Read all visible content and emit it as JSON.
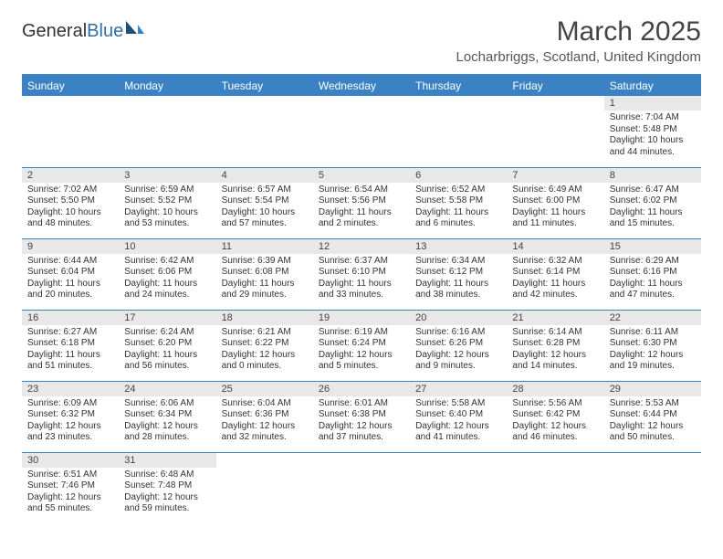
{
  "brand": {
    "part1": "General",
    "part2": "Blue"
  },
  "title": "March 2025",
  "location": "Locharbriggs, Scotland, United Kingdom",
  "colors": {
    "header_bg": "#3b82c4",
    "header_text": "#ffffff",
    "daynum_bg": "#e8e8e8",
    "divider": "#3b82c4",
    "text": "#333333"
  },
  "day_headers": [
    "Sunday",
    "Monday",
    "Tuesday",
    "Wednesday",
    "Thursday",
    "Friday",
    "Saturday"
  ],
  "weeks": [
    [
      {
        "n": "",
        "sr": "",
        "ss": "",
        "dl": "",
        "empty": true
      },
      {
        "n": "",
        "sr": "",
        "ss": "",
        "dl": "",
        "empty": true
      },
      {
        "n": "",
        "sr": "",
        "ss": "",
        "dl": "",
        "empty": true
      },
      {
        "n": "",
        "sr": "",
        "ss": "",
        "dl": "",
        "empty": true
      },
      {
        "n": "",
        "sr": "",
        "ss": "",
        "dl": "",
        "empty": true
      },
      {
        "n": "",
        "sr": "",
        "ss": "",
        "dl": "",
        "empty": true
      },
      {
        "n": "1",
        "sr": "Sunrise: 7:04 AM",
        "ss": "Sunset: 5:48 PM",
        "dl": "Daylight: 10 hours and 44 minutes."
      }
    ],
    [
      {
        "n": "2",
        "sr": "Sunrise: 7:02 AM",
        "ss": "Sunset: 5:50 PM",
        "dl": "Daylight: 10 hours and 48 minutes."
      },
      {
        "n": "3",
        "sr": "Sunrise: 6:59 AM",
        "ss": "Sunset: 5:52 PM",
        "dl": "Daylight: 10 hours and 53 minutes."
      },
      {
        "n": "4",
        "sr": "Sunrise: 6:57 AM",
        "ss": "Sunset: 5:54 PM",
        "dl": "Daylight: 10 hours and 57 minutes."
      },
      {
        "n": "5",
        "sr": "Sunrise: 6:54 AM",
        "ss": "Sunset: 5:56 PM",
        "dl": "Daylight: 11 hours and 2 minutes."
      },
      {
        "n": "6",
        "sr": "Sunrise: 6:52 AM",
        "ss": "Sunset: 5:58 PM",
        "dl": "Daylight: 11 hours and 6 minutes."
      },
      {
        "n": "7",
        "sr": "Sunrise: 6:49 AM",
        "ss": "Sunset: 6:00 PM",
        "dl": "Daylight: 11 hours and 11 minutes."
      },
      {
        "n": "8",
        "sr": "Sunrise: 6:47 AM",
        "ss": "Sunset: 6:02 PM",
        "dl": "Daylight: 11 hours and 15 minutes."
      }
    ],
    [
      {
        "n": "9",
        "sr": "Sunrise: 6:44 AM",
        "ss": "Sunset: 6:04 PM",
        "dl": "Daylight: 11 hours and 20 minutes."
      },
      {
        "n": "10",
        "sr": "Sunrise: 6:42 AM",
        "ss": "Sunset: 6:06 PM",
        "dl": "Daylight: 11 hours and 24 minutes."
      },
      {
        "n": "11",
        "sr": "Sunrise: 6:39 AM",
        "ss": "Sunset: 6:08 PM",
        "dl": "Daylight: 11 hours and 29 minutes."
      },
      {
        "n": "12",
        "sr": "Sunrise: 6:37 AM",
        "ss": "Sunset: 6:10 PM",
        "dl": "Daylight: 11 hours and 33 minutes."
      },
      {
        "n": "13",
        "sr": "Sunrise: 6:34 AM",
        "ss": "Sunset: 6:12 PM",
        "dl": "Daylight: 11 hours and 38 minutes."
      },
      {
        "n": "14",
        "sr": "Sunrise: 6:32 AM",
        "ss": "Sunset: 6:14 PM",
        "dl": "Daylight: 11 hours and 42 minutes."
      },
      {
        "n": "15",
        "sr": "Sunrise: 6:29 AM",
        "ss": "Sunset: 6:16 PM",
        "dl": "Daylight: 11 hours and 47 minutes."
      }
    ],
    [
      {
        "n": "16",
        "sr": "Sunrise: 6:27 AM",
        "ss": "Sunset: 6:18 PM",
        "dl": "Daylight: 11 hours and 51 minutes."
      },
      {
        "n": "17",
        "sr": "Sunrise: 6:24 AM",
        "ss": "Sunset: 6:20 PM",
        "dl": "Daylight: 11 hours and 56 minutes."
      },
      {
        "n": "18",
        "sr": "Sunrise: 6:21 AM",
        "ss": "Sunset: 6:22 PM",
        "dl": "Daylight: 12 hours and 0 minutes."
      },
      {
        "n": "19",
        "sr": "Sunrise: 6:19 AM",
        "ss": "Sunset: 6:24 PM",
        "dl": "Daylight: 12 hours and 5 minutes."
      },
      {
        "n": "20",
        "sr": "Sunrise: 6:16 AM",
        "ss": "Sunset: 6:26 PM",
        "dl": "Daylight: 12 hours and 9 minutes."
      },
      {
        "n": "21",
        "sr": "Sunrise: 6:14 AM",
        "ss": "Sunset: 6:28 PM",
        "dl": "Daylight: 12 hours and 14 minutes."
      },
      {
        "n": "22",
        "sr": "Sunrise: 6:11 AM",
        "ss": "Sunset: 6:30 PM",
        "dl": "Daylight: 12 hours and 19 minutes."
      }
    ],
    [
      {
        "n": "23",
        "sr": "Sunrise: 6:09 AM",
        "ss": "Sunset: 6:32 PM",
        "dl": "Daylight: 12 hours and 23 minutes."
      },
      {
        "n": "24",
        "sr": "Sunrise: 6:06 AM",
        "ss": "Sunset: 6:34 PM",
        "dl": "Daylight: 12 hours and 28 minutes."
      },
      {
        "n": "25",
        "sr": "Sunrise: 6:04 AM",
        "ss": "Sunset: 6:36 PM",
        "dl": "Daylight: 12 hours and 32 minutes."
      },
      {
        "n": "26",
        "sr": "Sunrise: 6:01 AM",
        "ss": "Sunset: 6:38 PM",
        "dl": "Daylight: 12 hours and 37 minutes."
      },
      {
        "n": "27",
        "sr": "Sunrise: 5:58 AM",
        "ss": "Sunset: 6:40 PM",
        "dl": "Daylight: 12 hours and 41 minutes."
      },
      {
        "n": "28",
        "sr": "Sunrise: 5:56 AM",
        "ss": "Sunset: 6:42 PM",
        "dl": "Daylight: 12 hours and 46 minutes."
      },
      {
        "n": "29",
        "sr": "Sunrise: 5:53 AM",
        "ss": "Sunset: 6:44 PM",
        "dl": "Daylight: 12 hours and 50 minutes."
      }
    ],
    [
      {
        "n": "30",
        "sr": "Sunrise: 6:51 AM",
        "ss": "Sunset: 7:46 PM",
        "dl": "Daylight: 12 hours and 55 minutes."
      },
      {
        "n": "31",
        "sr": "Sunrise: 6:48 AM",
        "ss": "Sunset: 7:48 PM",
        "dl": "Daylight: 12 hours and 59 minutes."
      },
      {
        "n": "",
        "sr": "",
        "ss": "",
        "dl": "",
        "empty": true
      },
      {
        "n": "",
        "sr": "",
        "ss": "",
        "dl": "",
        "empty": true
      },
      {
        "n": "",
        "sr": "",
        "ss": "",
        "dl": "",
        "empty": true
      },
      {
        "n": "",
        "sr": "",
        "ss": "",
        "dl": "",
        "empty": true
      },
      {
        "n": "",
        "sr": "",
        "ss": "",
        "dl": "",
        "empty": true
      }
    ]
  ]
}
